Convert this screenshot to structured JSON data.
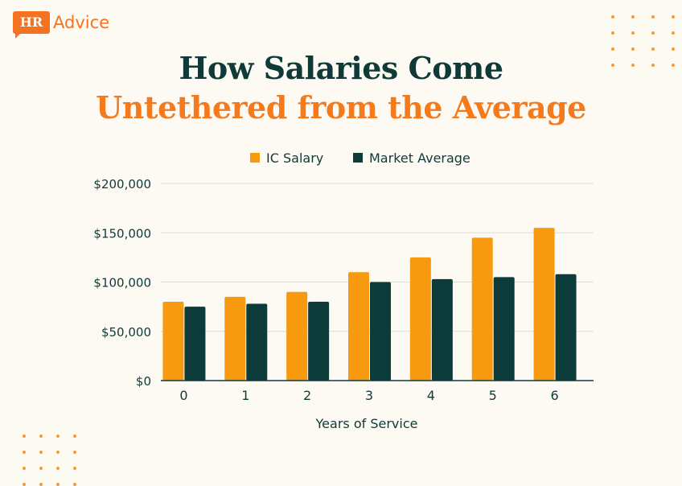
{
  "logo": {
    "badge": "HR",
    "text": "Advice"
  },
  "title": {
    "line1": "How Salaries Come",
    "line2": "Untethered from the Average"
  },
  "colors": {
    "ic_salary": "#f79a10",
    "market_average": "#0d3b3a",
    "title_dark": "#0f3a38",
    "title_accent": "#f57a1b"
  },
  "chart_data": {
    "type": "bar",
    "categories": [
      "0",
      "1",
      "2",
      "3",
      "4",
      "5",
      "6"
    ],
    "series": [
      {
        "name": "IC Salary",
        "values": [
          80000,
          85000,
          90000,
          110000,
          125000,
          145000,
          155000
        ]
      },
      {
        "name": "Market Average",
        "values": [
          75000,
          78000,
          80000,
          100000,
          103000,
          105000,
          108000
        ]
      }
    ],
    "xlabel": "Years of Service",
    "ylabel": "",
    "ylim": [
      0,
      200000
    ],
    "yticks": [
      0,
      50000,
      100000,
      150000,
      200000
    ],
    "ytick_labels": [
      "$0",
      "$50,000",
      "$100,000",
      "$150,000",
      "$200,000"
    ],
    "grid": true,
    "legend_position": "top"
  }
}
